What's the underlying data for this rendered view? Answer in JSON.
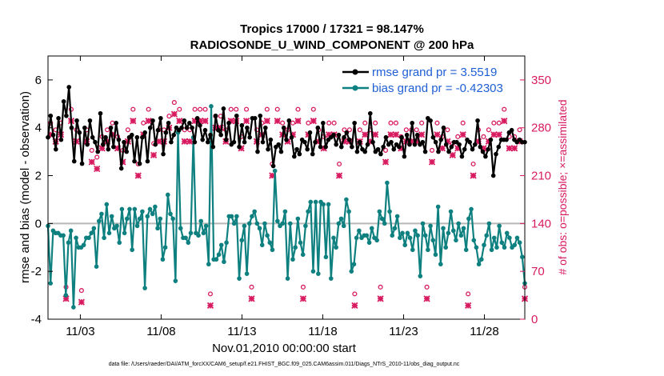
{
  "chart_data": {
    "type": "line",
    "title": "Tropics 17000 / 17321 = 98.147%",
    "subtitle": "RADIOSONDE_U_WIND_COMPONENT @ 200 hPa",
    "xlabel": "Nov.01,2010 00:00:00 start",
    "ylabel_left": "rmse and bias (model - observation)",
    "ylabel_right": "# of obs: o=possible; ×=assimilated",
    "footer": "data file: /Users/raeder/DAI/ATM_forcXX/CAM6_setup/f.e21.FHIST_BGC.f09_025.CAM6assim.011/Diags_NTrS_2010-11/obs_diag_output.nc",
    "xlim": [
      1.0,
      30.5
    ],
    "ylim_left": [
      -4,
      7
    ],
    "ylim_right": [
      0,
      385
    ],
    "xticks": [
      3,
      8,
      13,
      18,
      23,
      28
    ],
    "xtick_labels": [
      "11/03",
      "11/08",
      "11/13",
      "11/18",
      "11/23",
      "11/28"
    ],
    "yticks_left": [
      -4,
      -2,
      0,
      2,
      4,
      6
    ],
    "yticks_right": [
      0,
      70,
      140,
      210,
      280,
      350
    ],
    "colors": {
      "rmse": "#000000",
      "bias": "#0f8080",
      "obs": "#d81b60",
      "legend_text": "#1f5fd6",
      "zero_line": "#b8b8b8"
    },
    "series": [
      {
        "name": "rmse grand pr = 3.5519",
        "legend_label": "rmse grand pr = 3.5519",
        "marker": "circle",
        "values": [
          3.6,
          4.5,
          3.7,
          3.1,
          4.4,
          3.5,
          5.1,
          4.5,
          5.7,
          4.0,
          2.6,
          4.3,
          3.8,
          2.5,
          4.0,
          3.3,
          4.3,
          3.6,
          3.4,
          3.0,
          4.6,
          3.3,
          3.6,
          3.1,
          4.0,
          3.2,
          4.2,
          3.5,
          2.3,
          3.4,
          3.0,
          3.6,
          3.7,
          2.6,
          3.6,
          2.5,
          3.6,
          3.8,
          2.6,
          4.0,
          4.3,
          3.3,
          3.9,
          4.4,
          2.9,
          3.8,
          4.2,
          3.4,
          3.7,
          4.0,
          3.9,
          4.0,
          4.3,
          4.0,
          4.2,
          4.0,
          3.4,
          4.4,
          4.1,
          3.5,
          3.9,
          3.4,
          3.7,
          3.2,
          4.5,
          3.9,
          3.7,
          4.8,
          3.5,
          4.2,
          3.3,
          3.4,
          4.5,
          3.2,
          4.1,
          3.4,
          4.0,
          3.6,
          4.4,
          4.4,
          3.0,
          4.5,
          3.4,
          4.0,
          3.1,
          3.5,
          2.4,
          3.2,
          3.3,
          3.0,
          4.0,
          3.5,
          4.3,
          3.6,
          2.8,
          3.1,
          2.9,
          3.5,
          3.4,
          3.1,
          3.8,
          2.9,
          3.4,
          4.0,
          3.2,
          4.2,
          3.2,
          3.5,
          3.6,
          3.7,
          3.3,
          3.7,
          3.2,
          3.6,
          3.8,
          3.5,
          3.2,
          4.2,
          3.0,
          3.4,
          3.1,
          3.0,
          3.3,
          4.6,
          3.4,
          3.0,
          3.1,
          2.9,
          3.2,
          3.6,
          3.3,
          3.4,
          3.1,
          3.3,
          3.2,
          3.6,
          2.8,
          3.7,
          3.3,
          4.2,
          3.3,
          3.7,
          3.3,
          3.4,
          3.0,
          4.4,
          4.3,
          3.6,
          3.4,
          3.0,
          3.5,
          4.0,
          3.3,
          3.0,
          3.2,
          3.4,
          3.4,
          3.3,
          2.8,
          3.1,
          3.5,
          3.4,
          3.1,
          3.3,
          4.3,
          3.2,
          3.0,
          2.8,
          3.1,
          3.5,
          2.0,
          2.9,
          3.2,
          3.5,
          3.5,
          3.5,
          3.8,
          3.9,
          3.5,
          3.4,
          3.5,
          3.4,
          3.4
        ]
      },
      {
        "name": "bias grand pr = -0.42303",
        "legend_label": "bias grand pr = -0.42303",
        "marker": "circle",
        "values": [
          -0.1,
          -2.5,
          -0.3,
          -0.4,
          -0.4,
          -0.5,
          -0.5,
          -3.0,
          -0.8,
          -0.3,
          -3.5,
          -0.6,
          -1.0,
          -1.0,
          -0.9,
          -0.6,
          -0.6,
          -0.4,
          -0.2,
          -1.8,
          0.1,
          0.4,
          -0.6,
          0.8,
          -0.4,
          0.3,
          -0.2,
          -0.1,
          -0.8,
          0.6,
          -0.4,
          0.2,
          0.6,
          -1.1,
          0.6,
          -0.1,
          0.2,
          0.5,
          -2.7,
          0.3,
          0.6,
          0.4,
          0.7,
          -0.2,
          0.2,
          -1.5,
          -1.0,
          1.2,
          0.4,
          0.2,
          -2.4,
          3.8,
          -0.2,
          -0.6,
          -0.6,
          -0.8,
          -0.4,
          3.6,
          -0.4,
          -0.5,
          0.1,
          -0.4,
          -0.1,
          -1.7,
          4.9,
          -1.5,
          -1.5,
          -1.3,
          -0.9,
          -1.6,
          -0.8,
          0.3,
          0.3,
          0.0,
          0.3,
          -2.3,
          -0.7,
          -0.1,
          -2.1,
          0.0,
          0.3,
          0.5,
          0.0,
          -0.2,
          -0.9,
          0.0,
          -0.5,
          -0.8,
          -1.1,
          2.2,
          0.1,
          -0.1,
          0.0,
          0.5,
          -2.3,
          0.0,
          -1.5,
          -1.0,
          0.2,
          -0.8,
          -1.3,
          -0.1,
          0.5,
          0.9,
          -2.0,
          0.9,
          -2.1,
          0.9,
          0.8,
          -1.4,
          0.8,
          -2.3,
          -0.6,
          -1.0,
          0.0,
          0.2,
          -0.1,
          1.0,
          0.5,
          -2.0,
          -1.7,
          -0.6,
          -0.3,
          -0.6,
          -0.5,
          -0.5,
          -0.8,
          -0.2,
          -0.6,
          -0.7,
          0.5,
          0.2,
          0.0,
          1.7,
          0.5,
          -0.5,
          -0.2,
          0.3,
          -0.6,
          -0.4,
          -0.9,
          -0.4,
          -0.6,
          -1.1,
          -0.3,
          -0.5,
          -2.2,
          0.0,
          -0.5,
          -1.1,
          -0.1,
          -0.7,
          -1.3,
          0.7,
          -1.7,
          -0.2,
          -1.0,
          -0.4,
          0.5,
          -0.3,
          -0.7,
          0.0,
          -0.5,
          -0.2,
          -1.1,
          0.2,
          0.6,
          -0.7,
          -1.0,
          -1.7,
          -1.5,
          -0.9,
          -0.5,
          0.0,
          -1.1,
          -0.6,
          -1.0,
          -0.1,
          -0.8,
          -1.0,
          -0.4,
          -0.6,
          -1.0,
          -0.9,
          -0.6,
          -0.8,
          -1.4,
          -2.5
        ]
      },
      {
        "name": "obs possible",
        "marker": "o",
        "axis": "right",
        "values": [
          220,
          280,
          230,
          270,
          30,
          280,
          300,
          40,
          320,
          300,
          20,
          270,
          280,
          35,
          300,
          270,
          260,
          240,
          30,
          230,
          270,
          260,
          300,
          270,
          260,
          280,
          40,
          260,
          230,
          240,
          270,
          270,
          30,
          300,
          40,
          220,
          270,
          280,
          30,
          300,
          280,
          250,
          290,
          270,
          40,
          270,
          290,
          290,
          300,
          310,
          30,
          300,
          300,
          270,
          300,
          270,
          290,
          300,
          40,
          300,
          290,
          300,
          300,
          30,
          320,
          290,
          260,
          290,
          30,
          270,
          320,
          300,
          330,
          300,
          310,
          260,
          290,
          300,
          300,
          40,
          300,
          270,
          40,
          280,
          270,
          300,
          30,
          220,
          270,
          300,
          30,
          280,
          270,
          270,
          40,
          280,
          290,
          300,
          280,
          40,
          250,
          280,
          300,
          300,
          40,
          270,
          250,
          260,
          280,
          280,
          30,
          280,
          270,
          220,
          30,
          270,
          280,
          270,
          280,
          30,
          260,
          270,
          270,
          280,
          30,
          270,
          280,
          280,
          260,
          40,
          270,
          240,
          260,
          280,
          40,
          280,
          270,
          260,
          30,
          270,
          280,
          270,
          40,
          270,
          300,
          280,
          280,
          40,
          260,
          240,
          270,
          280,
          40,
          260,
          240,
          270,
          230,
          250,
          40,
          260,
          270,
          280,
          290,
          30,
          260,
          220,
          270,
          270,
          30,
          260,
          240,
          270,
          40,
          280,
          260,
          280,
          240,
          300,
          30,
          260,
          270,
          260,
          280,
          270,
          0,
          40
        ]
      },
      {
        "name": "obs assimilated",
        "marker": "x",
        "axis": "right",
        "values": [
          210,
          270,
          220,
          260,
          20,
          270,
          290,
          30,
          310,
          290,
          15,
          260,
          270,
          25,
          290,
          260,
          250,
          230,
          20,
          220,
          260,
          250,
          290,
          260,
          250,
          270,
          30,
          250,
          220,
          230,
          260,
          260,
          20,
          290,
          30,
          210,
          260,
          270,
          20,
          290,
          270,
          240,
          280,
          260,
          30,
          260,
          280,
          280,
          290,
          300,
          20,
          290,
          290,
          260,
          290,
          260,
          280,
          290,
          30,
          290,
          280,
          290,
          290,
          20,
          310,
          280,
          250,
          280,
          20,
          260,
          310,
          290,
          320,
          290,
          300,
          250,
          280,
          290,
          290,
          30,
          290,
          260,
          30,
          270,
          260,
          290,
          20,
          210,
          260,
          290,
          20,
          270,
          260,
          260,
          30,
          270,
          280,
          290,
          270,
          30,
          240,
          270,
          290,
          290,
          30,
          260,
          240,
          250,
          270,
          270,
          20,
          270,
          260,
          210,
          20,
          260,
          270,
          260,
          270,
          20,
          250,
          260,
          260,
          270,
          20,
          260,
          270,
          270,
          250,
          30,
          260,
          230,
          250,
          270,
          30,
          270,
          260,
          250,
          20,
          260,
          270,
          260,
          30,
          260,
          290,
          270,
          270,
          30,
          250,
          230,
          260,
          270,
          30,
          250,
          230,
          260,
          220,
          240,
          30,
          250,
          260,
          270,
          280,
          20,
          250,
          210,
          260,
          260,
          20,
          250,
          230,
          260,
          30,
          270,
          250,
          270,
          230,
          290,
          20,
          250,
          260,
          250,
          270,
          260,
          0,
          30
        ]
      }
    ]
  }
}
